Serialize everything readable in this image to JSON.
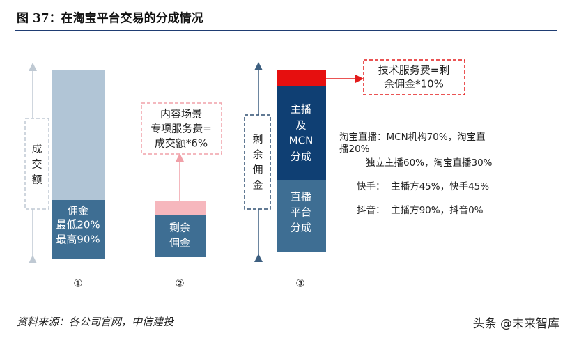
{
  "header": {
    "title": "图 37：在淘宝平台交易的分成情况"
  },
  "columns": [
    {
      "number": "①",
      "side_label": [
        "成",
        "交",
        "额"
      ],
      "bar_label": [
        "佣金",
        "最低20%",
        "最高90%"
      ]
    },
    {
      "number": "②",
      "bar_label": [
        "剩余",
        "佣金"
      ],
      "note": [
        "内容场景",
        "专项服务费=",
        "成交额*6%"
      ]
    },
    {
      "number": "③",
      "side_label": [
        "剩",
        "余",
        "佣",
        "金"
      ],
      "top_label": [
        "主播",
        "及",
        "MCN",
        "分成"
      ],
      "bottom_label": [
        "直播",
        "平台",
        "分成"
      ],
      "note": [
        "技术服务费=剩",
        "余佣金*10%"
      ]
    }
  ],
  "details": [
    "淘宝直播：MCN机构70%，淘宝直",
    "播20%",
    "独立主播60%，淘宝直播30%",
    "快手：  主播方45%，快手45%",
    "抖音：  主播方90%，抖音0%"
  ],
  "footer": {
    "source": "资料来源：各公司官网，中信建投",
    "watermark": "头条 @未来智库"
  }
}
